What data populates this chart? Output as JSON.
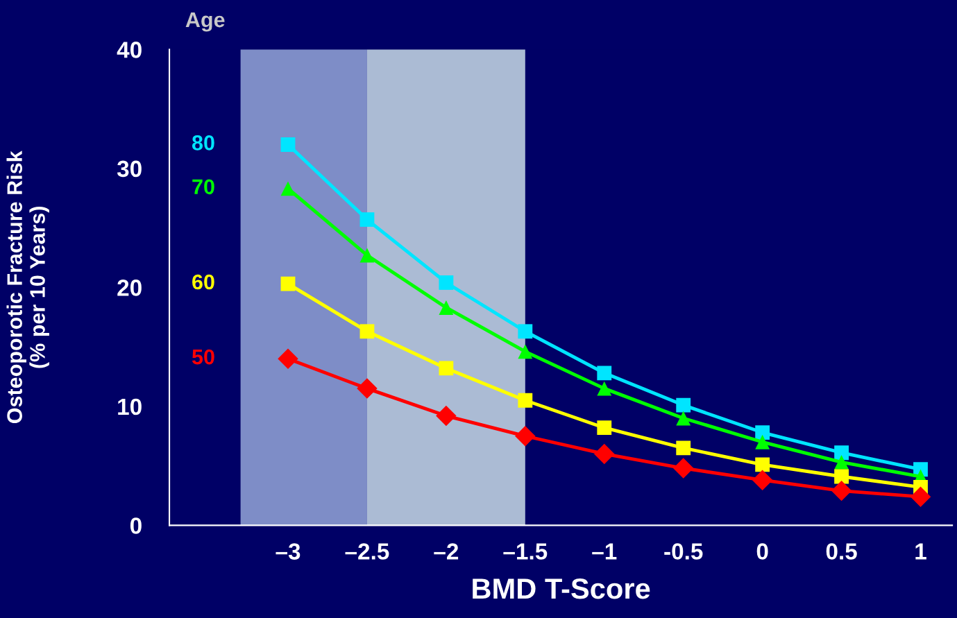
{
  "chart_data": {
    "type": "line",
    "legend_title": "Age",
    "xlabel": "BMD T-Score",
    "ylabel": "Osteoporotic Fracture Risk\n(% per 10 Years)",
    "x": [
      -3,
      -2.5,
      -2,
      -1.5,
      -1,
      -0.5,
      0,
      0.5,
      1
    ],
    "xlim": [
      -3.75,
      1.2
    ],
    "xticks": [
      {
        "value": -3,
        "label": "–3"
      },
      {
        "value": -2.5,
        "label": "–2.5"
      },
      {
        "value": -2,
        "label": "–2"
      },
      {
        "value": -1.5,
        "label": "–1.5"
      },
      {
        "value": -1,
        "label": "–1"
      },
      {
        "value": -0.5,
        "label": "-0.5"
      },
      0,
      0.5,
      1
    ],
    "ylim": [
      0,
      40
    ],
    "yticks": [
      0,
      10,
      20,
      30,
      40
    ],
    "bands": [
      {
        "axis": "x",
        "from": -3.3,
        "to": -2.5,
        "color": "#a8bce8"
      },
      {
        "axis": "x",
        "from": -2.5,
        "to": -1.5,
        "color": "#e4fafa"
      }
    ],
    "series": [
      {
        "name": "80",
        "color": "#00e5ff",
        "marker": "square",
        "values": [
          32,
          25.7,
          20.4,
          16.3,
          12.8,
          10.1,
          7.8,
          6.1,
          4.7
        ]
      },
      {
        "name": "70",
        "color": "#00ff00",
        "marker": "triangle",
        "values": [
          28.3,
          22.7,
          18.3,
          14.6,
          11.5,
          9.0,
          7.0,
          5.3,
          4.1
        ]
      },
      {
        "name": "60",
        "color": "#ffff00",
        "marker": "square",
        "values": [
          20.3,
          16.3,
          13.2,
          10.5,
          8.2,
          6.5,
          5.1,
          4.1,
          3.2
        ]
      },
      {
        "name": "50",
        "color": "#ff0000",
        "marker": "diamond",
        "values": [
          14.0,
          11.5,
          9.2,
          7.5,
          6.0,
          4.8,
          3.8,
          2.9,
          2.4
        ]
      }
    ]
  }
}
